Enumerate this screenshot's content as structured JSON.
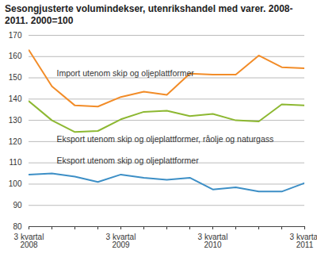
{
  "chart_data": {
    "type": "line",
    "title": "Sesongjusterte volumindekser, utenrikshandel med varer. 2008-2011. 2000=100",
    "categories": [
      "3 kvartal\n2008",
      null,
      null,
      null,
      "3 kvartal\n2009",
      null,
      null,
      null,
      "3 kvartal\n2010",
      null,
      null,
      null,
      "3 kvartal\n2011"
    ],
    "series": [
      {
        "name": "Import utenom skip og oljeplattformer",
        "color": "#f28c28",
        "values": [
          163,
          146,
          137,
          136.5,
          141,
          143.5,
          142,
          152,
          151.5,
          151.5,
          160.5,
          155,
          154.5
        ]
      },
      {
        "name": "Eksport utenom skip og oljeplattformer, råolje og naturgass",
        "color": "#8db832",
        "values": [
          139,
          130,
          124.5,
          125,
          130.5,
          134,
          134.5,
          132,
          133,
          130,
          129.5,
          137.5,
          137
        ]
      },
      {
        "name": "Eksport utenom skip og oljeplattformer",
        "color": "#3d8fc6",
        "values": [
          104.5,
          105,
          103.5,
          101,
          104.5,
          103,
          102,
          103,
          97.5,
          98.5,
          96.5,
          96.5,
          100.5
        ]
      }
    ],
    "ylim": [
      80,
      170
    ],
    "yticks": [
      80,
      90,
      100,
      110,
      120,
      130,
      140,
      150,
      160,
      170
    ],
    "grid": true
  }
}
